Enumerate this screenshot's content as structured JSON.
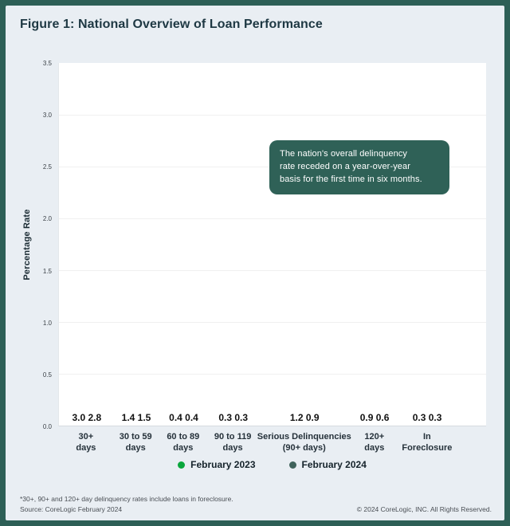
{
  "figure": {
    "title": "Figure 1: National Overview of Loan Performance"
  },
  "chart_data": {
    "type": "bar",
    "title": "Figure 1: National Overview of Loan Performance",
    "ylabel": "Percentage Rate",
    "xlabel": "",
    "ylim": [
      0,
      3.5
    ],
    "yticks": [
      0.0,
      0.5,
      1.0,
      1.5,
      2.0,
      2.5,
      3.0,
      3.5
    ],
    "grid": true,
    "legend_position": "bottom",
    "categories": [
      "30+\ndays",
      "30 to 59\ndays",
      "60 to 89\ndays",
      "90 to 119\ndays",
      "Serious Delinquencies\n(90+ days)",
      "120+\ndays",
      "In\nForeclosure"
    ],
    "series": [
      {
        "name": "February 2023",
        "color": "#0aa63c",
        "values": [
          3.0,
          1.4,
          0.4,
          0.3,
          1.2,
          0.9,
          0.3
        ]
      },
      {
        "name": "February 2024",
        "color": "#40635c",
        "values": [
          2.8,
          1.5,
          0.4,
          0.3,
          0.9,
          0.6,
          0.3
        ]
      }
    ],
    "group_centers_pct": [
      6.5,
      18.1,
      29.2,
      40.8,
      57.5,
      73.9,
      86.2
    ]
  },
  "annotation": {
    "text": "The nation's overall delinquency\nrate receded on a year-over-year\nbasis for the first time in six months.",
    "bg_color": "#2f6157",
    "text_color": "#ffffff"
  },
  "footer": {
    "footnote": "*30+, 90+ and 120+ day delinquency rates include loans in foreclosure.",
    "source": "Source: CoreLogic February 2024",
    "copyright": "© 2024 CoreLogic, INC. All Rights Reserved."
  },
  "colors": {
    "frame": "#2d5f56",
    "background": "#e9eef3",
    "plot_background": "#ffffff",
    "title_text": "#1e3843"
  }
}
